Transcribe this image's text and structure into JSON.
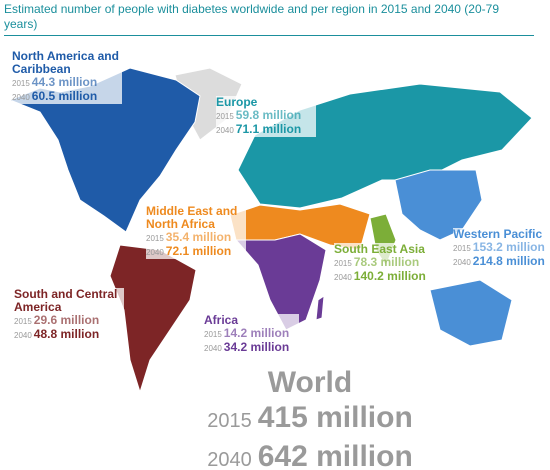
{
  "title": "Estimated number of people with diabetes worldwide and per region in 2015 and 2040 (20-79 years)",
  "regions": [
    {
      "name": "North America and Caribbean",
      "color": "#1f5ba8",
      "rows": [
        {
          "year": "2015",
          "value": "44.3 million"
        },
        {
          "year": "2040",
          "value": "60.5 million"
        }
      ]
    },
    {
      "name": "Europe",
      "color": "#1b97a6",
      "rows": [
        {
          "year": "2015",
          "value": "59.8 million"
        },
        {
          "year": "2040",
          "value": "71.1 million"
        }
      ]
    },
    {
      "name": "Middle East and North Africa",
      "color": "#ee8a1f",
      "rows": [
        {
          "year": "2015",
          "value": "35.4 million"
        },
        {
          "year": "2040",
          "value": "72.1 million"
        }
      ]
    },
    {
      "name": "Western Pacific",
      "color": "#4a8fd6",
      "rows": [
        {
          "year": "2015",
          "value": "153.2 million"
        },
        {
          "year": "2040",
          "value": "214.8 million"
        }
      ]
    },
    {
      "name": "South East Asia",
      "color": "#7cae38",
      "rows": [
        {
          "year": "2015",
          "value": "78.3 million"
        },
        {
          "year": "2040",
          "value": "140.2 million"
        }
      ]
    },
    {
      "name": "Africa",
      "color": "#6a3b96",
      "rows": [
        {
          "year": "2015",
          "value": "14.2 million"
        },
        {
          "year": "2040",
          "value": "34.2 million"
        }
      ]
    },
    {
      "name": "South and Central America",
      "color": "#7d2526",
      "rows": [
        {
          "year": "2015",
          "value": "29.6 million"
        },
        {
          "year": "2040",
          "value": "48.8 million"
        }
      ]
    }
  ],
  "world": {
    "name": "World",
    "rows": [
      {
        "year": "2015",
        "value": "415 million"
      },
      {
        "year": "2040",
        "value": "642 million"
      }
    ]
  }
}
